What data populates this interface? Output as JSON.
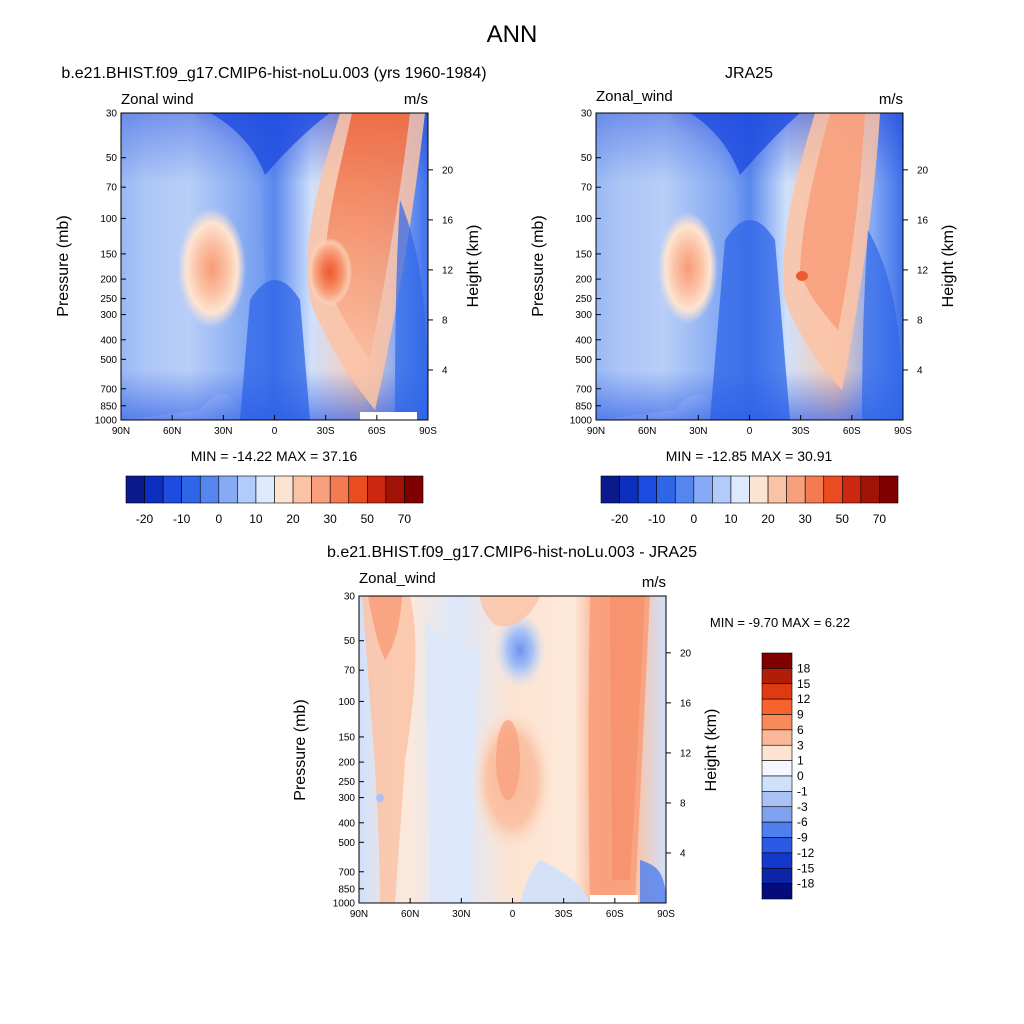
{
  "figure_title": "ANN",
  "chart_data": [
    {
      "type": "contour",
      "title": "b.e21.BHIST.f09_g17.CMIP6-hist-noLu.003 (yrs 1960-1984)",
      "subtitle_left": "Zonal wind",
      "subtitle_right": "m/s",
      "xlabel": "",
      "ylabel": "Pressure (mb)",
      "ylabel_right": "Height (km)",
      "x_ticks": [
        "90N",
        "60N",
        "30N",
        "0",
        "30S",
        "60S",
        "90S"
      ],
      "y_ticks": [
        "30",
        "50",
        "70",
        "100",
        "150",
        "200",
        "250",
        "300",
        "400",
        "500",
        "700",
        "850",
        "1000"
      ],
      "y_right_ticks": [
        "20",
        "16",
        "12",
        "8",
        "4"
      ],
      "stats": "MIN = -14.22  MAX =  37.16",
      "min": -14.22,
      "max": 37.16,
      "colorbar_labels": [
        "-20",
        "-10",
        "0",
        "10",
        "20",
        "30",
        "50",
        "70"
      ],
      "colorbar_orientation": "horizontal"
    },
    {
      "type": "contour",
      "title": "JRA25",
      "subtitle_left": "Zonal_wind",
      "subtitle_right": "m/s",
      "xlabel": "",
      "ylabel": "Pressure (mb)",
      "ylabel_right": "Height (km)",
      "x_ticks": [
        "90N",
        "60N",
        "30N",
        "0",
        "30S",
        "60S",
        "90S"
      ],
      "y_ticks": [
        "30",
        "50",
        "70",
        "100",
        "150",
        "200",
        "250",
        "300",
        "400",
        "500",
        "700",
        "850",
        "1000"
      ],
      "y_right_ticks": [
        "20",
        "16",
        "12",
        "8",
        "4"
      ],
      "stats": "MIN = -12.85  MAX =  30.91",
      "min": -12.85,
      "max": 30.91,
      "colorbar_labels": [
        "-20",
        "-10",
        "0",
        "10",
        "20",
        "30",
        "50",
        "70"
      ],
      "colorbar_orientation": "horizontal"
    },
    {
      "type": "contour",
      "title": "b.e21.BHIST.f09_g17.CMIP6-hist-noLu.003 - JRA25",
      "subtitle_left": "Zonal_wind",
      "subtitle_right": "m/s",
      "xlabel": "",
      "ylabel": "Pressure (mb)",
      "ylabel_right": "Height (km)",
      "x_ticks": [
        "90N",
        "60N",
        "30N",
        "0",
        "30S",
        "60S",
        "90S"
      ],
      "y_ticks": [
        "30",
        "50",
        "70",
        "100",
        "150",
        "200",
        "250",
        "300",
        "400",
        "500",
        "700",
        "850",
        "1000"
      ],
      "y_right_ticks": [
        "20",
        "16",
        "12",
        "8",
        "4"
      ],
      "stats": "MIN =  -9.70  MAX =   6.22",
      "min": -9.7,
      "max": 6.22,
      "colorbar_labels": [
        "18",
        "15",
        "12",
        "9",
        "6",
        "3",
        "1",
        "0",
        "-1",
        "-3",
        "-6",
        "-9",
        "-12",
        "-15",
        "-18"
      ],
      "colorbar_orientation": "vertical"
    }
  ],
  "colors": {
    "main_scale": [
      "#0a1a8c",
      "#0d2fc0",
      "#1f4ce0",
      "#2f66e8",
      "#5586f0",
      "#86aaf5",
      "#b2cbfa",
      "#dde9fc",
      "#fde4d2",
      "#fbc3a6",
      "#f8a07d",
      "#f47a52",
      "#ec4c22",
      "#cc2810",
      "#a01408",
      "#800000"
    ],
    "diff_scale": [
      "#800000",
      "#b01e08",
      "#e03b10",
      "#f8622e",
      "#f88a5a",
      "#fbb899",
      "#fde4d2",
      "#f4f7ff",
      "#cfe0fb",
      "#a8c2f6",
      "#7fa3f1",
      "#4f7eee",
      "#2a5ae6",
      "#1438cc",
      "#0b24a8",
      "#040c7c"
    ]
  }
}
